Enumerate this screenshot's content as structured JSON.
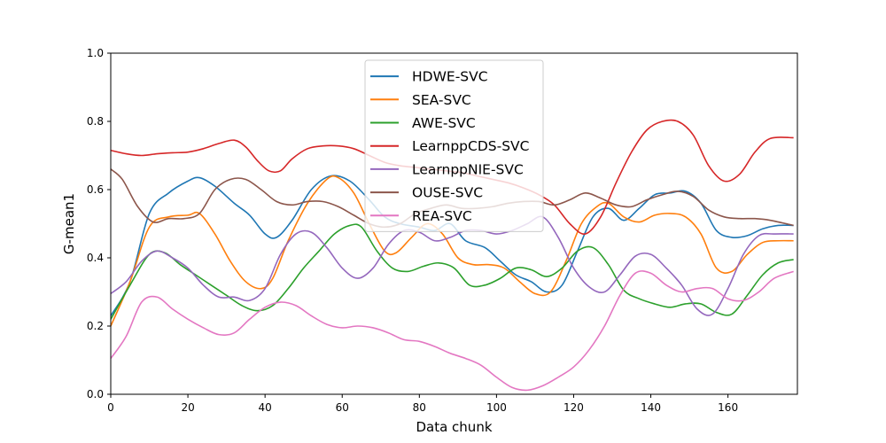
{
  "chart_data": {
    "type": "line",
    "xlabel": "Data chunk",
    "ylabel": "G-mean1",
    "xlim": [
      0,
      178
    ],
    "ylim": [
      0,
      1.0
    ],
    "xticks": [
      0,
      20,
      40,
      60,
      80,
      100,
      120,
      140,
      160
    ],
    "yticks": [
      0.0,
      0.2,
      0.4,
      0.6,
      0.8,
      1.0
    ],
    "xtick_labels": [
      "0",
      "20",
      "40",
      "60",
      "80",
      "100",
      "120",
      "140",
      "160"
    ],
    "ytick_labels": [
      "0.0",
      "0.2",
      "0.4",
      "0.6",
      "0.8",
      "1.0"
    ],
    "grid": false,
    "legend_position": "top-center",
    "series": [
      {
        "name": "HDWE-SVC",
        "color": "#1f77b4",
        "points": [
          [
            0,
            0.23
          ],
          [
            5,
            0.33
          ],
          [
            10,
            0.53
          ],
          [
            15,
            0.59
          ],
          [
            20,
            0.625
          ],
          [
            23,
            0.635
          ],
          [
            27,
            0.61
          ],
          [
            32,
            0.56
          ],
          [
            36,
            0.525
          ],
          [
            40,
            0.47
          ],
          [
            43,
            0.46
          ],
          [
            47,
            0.51
          ],
          [
            52,
            0.6
          ],
          [
            57,
            0.64
          ],
          [
            62,
            0.625
          ],
          [
            67,
            0.57
          ],
          [
            71,
            0.52
          ],
          [
            75,
            0.5
          ],
          [
            80,
            0.49
          ],
          [
            84,
            0.48
          ],
          [
            88,
            0.5
          ],
          [
            92,
            0.45
          ],
          [
            97,
            0.43
          ],
          [
            101,
            0.39
          ],
          [
            105,
            0.35
          ],
          [
            109,
            0.33
          ],
          [
            113,
            0.3
          ],
          [
            117,
            0.32
          ],
          [
            121,
            0.42
          ],
          [
            125,
            0.52
          ],
          [
            129,
            0.545
          ],
          [
            133,
            0.51
          ],
          [
            137,
            0.545
          ],
          [
            141,
            0.585
          ],
          [
            145,
            0.59
          ],
          [
            149,
            0.595
          ],
          [
            153,
            0.56
          ],
          [
            157,
            0.48
          ],
          [
            161,
            0.46
          ],
          [
            165,
            0.465
          ],
          [
            169,
            0.485
          ],
          [
            173,
            0.495
          ],
          [
            177,
            0.495
          ]
        ]
      },
      {
        "name": "SEA-SVC",
        "color": "#ff7f0e",
        "points": [
          [
            0,
            0.2
          ],
          [
            5,
            0.33
          ],
          [
            10,
            0.49
          ],
          [
            15,
            0.52
          ],
          [
            20,
            0.525
          ],
          [
            23,
            0.53
          ],
          [
            27,
            0.47
          ],
          [
            31,
            0.39
          ],
          [
            35,
            0.33
          ],
          [
            39,
            0.31
          ],
          [
            42,
            0.34
          ],
          [
            46,
            0.45
          ],
          [
            51,
            0.56
          ],
          [
            56,
            0.63
          ],
          [
            59,
            0.635
          ],
          [
            63,
            0.59
          ],
          [
            67,
            0.5
          ],
          [
            71,
            0.42
          ],
          [
            74,
            0.415
          ],
          [
            78,
            0.46
          ],
          [
            82,
            0.5
          ],
          [
            86,
            0.47
          ],
          [
            90,
            0.4
          ],
          [
            94,
            0.38
          ],
          [
            98,
            0.38
          ],
          [
            102,
            0.37
          ],
          [
            106,
            0.33
          ],
          [
            110,
            0.295
          ],
          [
            114,
            0.3
          ],
          [
            118,
            0.39
          ],
          [
            122,
            0.5
          ],
          [
            126,
            0.55
          ],
          [
            129,
            0.56
          ],
          [
            133,
            0.52
          ],
          [
            137,
            0.505
          ],
          [
            141,
            0.525
          ],
          [
            145,
            0.53
          ],
          [
            149,
            0.52
          ],
          [
            153,
            0.47
          ],
          [
            157,
            0.37
          ],
          [
            161,
            0.36
          ],
          [
            165,
            0.41
          ],
          [
            169,
            0.445
          ],
          [
            173,
            0.45
          ],
          [
            177,
            0.45
          ]
        ]
      },
      {
        "name": "AWE-SVC",
        "color": "#2ca02c",
        "points": [
          [
            0,
            0.22
          ],
          [
            5,
            0.32
          ],
          [
            10,
            0.41
          ],
          [
            14,
            0.415
          ],
          [
            18,
            0.38
          ],
          [
            22,
            0.35
          ],
          [
            26,
            0.32
          ],
          [
            30,
            0.29
          ],
          [
            34,
            0.26
          ],
          [
            38,
            0.245
          ],
          [
            42,
            0.26
          ],
          [
            46,
            0.31
          ],
          [
            50,
            0.37
          ],
          [
            54,
            0.42
          ],
          [
            58,
            0.47
          ],
          [
            62,
            0.495
          ],
          [
            65,
            0.49
          ],
          [
            69,
            0.42
          ],
          [
            73,
            0.37
          ],
          [
            77,
            0.36
          ],
          [
            81,
            0.375
          ],
          [
            85,
            0.385
          ],
          [
            89,
            0.37
          ],
          [
            93,
            0.32
          ],
          [
            97,
            0.32
          ],
          [
            101,
            0.34
          ],
          [
            105,
            0.37
          ],
          [
            109,
            0.365
          ],
          [
            113,
            0.345
          ],
          [
            117,
            0.37
          ],
          [
            121,
            0.42
          ],
          [
            125,
            0.43
          ],
          [
            129,
            0.38
          ],
          [
            133,
            0.305
          ],
          [
            137,
            0.28
          ],
          [
            141,
            0.265
          ],
          [
            145,
            0.255
          ],
          [
            149,
            0.265
          ],
          [
            153,
            0.265
          ],
          [
            157,
            0.24
          ],
          [
            161,
            0.235
          ],
          [
            165,
            0.29
          ],
          [
            169,
            0.35
          ],
          [
            173,
            0.385
          ],
          [
            177,
            0.395
          ]
        ]
      },
      {
        "name": "LearnppCDS-SVC",
        "color": "#d62728",
        "points": [
          [
            0,
            0.715
          ],
          [
            4,
            0.705
          ],
          [
            8,
            0.7
          ],
          [
            12,
            0.705
          ],
          [
            16,
            0.708
          ],
          [
            20,
            0.71
          ],
          [
            24,
            0.72
          ],
          [
            28,
            0.735
          ],
          [
            32,
            0.745
          ],
          [
            35,
            0.725
          ],
          [
            38,
            0.685
          ],
          [
            41,
            0.655
          ],
          [
            44,
            0.655
          ],
          [
            47,
            0.69
          ],
          [
            51,
            0.72
          ],
          [
            55,
            0.728
          ],
          [
            59,
            0.728
          ],
          [
            63,
            0.72
          ],
          [
            67,
            0.7
          ],
          [
            71,
            0.68
          ],
          [
            75,
            0.67
          ],
          [
            79,
            0.665
          ],
          [
            83,
            0.66
          ],
          [
            87,
            0.655
          ],
          [
            91,
            0.65
          ],
          [
            95,
            0.64
          ],
          [
            99,
            0.63
          ],
          [
            103,
            0.62
          ],
          [
            107,
            0.605
          ],
          [
            111,
            0.585
          ],
          [
            115,
            0.555
          ],
          [
            119,
            0.5
          ],
          [
            123,
            0.47
          ],
          [
            127,
            0.52
          ],
          [
            131,
            0.62
          ],
          [
            135,
            0.71
          ],
          [
            139,
            0.775
          ],
          [
            143,
            0.8
          ],
          [
            147,
            0.8
          ],
          [
            151,
            0.76
          ],
          [
            155,
            0.67
          ],
          [
            159,
            0.625
          ],
          [
            163,
            0.645
          ],
          [
            167,
            0.71
          ],
          [
            171,
            0.75
          ],
          [
            177,
            0.752
          ]
        ]
      },
      {
        "name": "LearnppNIE-SVC",
        "color": "#9467bd",
        "points": [
          [
            0,
            0.295
          ],
          [
            4,
            0.33
          ],
          [
            8,
            0.39
          ],
          [
            12,
            0.42
          ],
          [
            16,
            0.4
          ],
          [
            20,
            0.37
          ],
          [
            24,
            0.32
          ],
          [
            28,
            0.285
          ],
          [
            32,
            0.285
          ],
          [
            36,
            0.275
          ],
          [
            40,
            0.31
          ],
          [
            44,
            0.41
          ],
          [
            48,
            0.47
          ],
          [
            52,
            0.475
          ],
          [
            56,
            0.43
          ],
          [
            60,
            0.37
          ],
          [
            64,
            0.34
          ],
          [
            68,
            0.37
          ],
          [
            72,
            0.44
          ],
          [
            76,
            0.48
          ],
          [
            80,
            0.475
          ],
          [
            84,
            0.45
          ],
          [
            88,
            0.46
          ],
          [
            92,
            0.48
          ],
          [
            96,
            0.48
          ],
          [
            100,
            0.47
          ],
          [
            104,
            0.48
          ],
          [
            108,
            0.5
          ],
          [
            112,
            0.52
          ],
          [
            116,
            0.46
          ],
          [
            120,
            0.37
          ],
          [
            124,
            0.315
          ],
          [
            128,
            0.3
          ],
          [
            132,
            0.35
          ],
          [
            136,
            0.405
          ],
          [
            140,
            0.41
          ],
          [
            144,
            0.37
          ],
          [
            148,
            0.32
          ],
          [
            152,
            0.25
          ],
          [
            156,
            0.235
          ],
          [
            160,
            0.31
          ],
          [
            164,
            0.41
          ],
          [
            168,
            0.465
          ],
          [
            172,
            0.47
          ],
          [
            177,
            0.47
          ]
        ]
      },
      {
        "name": "OUSE-SVC",
        "color": "#8c564b",
        "points": [
          [
            0,
            0.66
          ],
          [
            3,
            0.63
          ],
          [
            7,
            0.55
          ],
          [
            11,
            0.505
          ],
          [
            15,
            0.515
          ],
          [
            19,
            0.515
          ],
          [
            23,
            0.53
          ],
          [
            27,
            0.6
          ],
          [
            31,
            0.63
          ],
          [
            35,
            0.63
          ],
          [
            39,
            0.6
          ],
          [
            43,
            0.565
          ],
          [
            47,
            0.555
          ],
          [
            51,
            0.565
          ],
          [
            55,
            0.565
          ],
          [
            59,
            0.55
          ],
          [
            63,
            0.525
          ],
          [
            67,
            0.5
          ],
          [
            71,
            0.49
          ],
          [
            75,
            0.5
          ],
          [
            79,
            0.53
          ],
          [
            83,
            0.545
          ],
          [
            87,
            0.555
          ],
          [
            91,
            0.545
          ],
          [
            95,
            0.545
          ],
          [
            99,
            0.55
          ],
          [
            103,
            0.56
          ],
          [
            107,
            0.565
          ],
          [
            111,
            0.565
          ],
          [
            115,
            0.555
          ],
          [
            119,
            0.57
          ],
          [
            123,
            0.59
          ],
          [
            127,
            0.575
          ],
          [
            131,
            0.555
          ],
          [
            135,
            0.55
          ],
          [
            139,
            0.57
          ],
          [
            143,
            0.585
          ],
          [
            147,
            0.595
          ],
          [
            151,
            0.58
          ],
          [
            155,
            0.54
          ],
          [
            159,
            0.52
          ],
          [
            163,
            0.515
          ],
          [
            167,
            0.515
          ],
          [
            171,
            0.51
          ],
          [
            177,
            0.495
          ]
        ]
      },
      {
        "name": "REA-SVC",
        "color": "#e377c2",
        "points": [
          [
            0,
            0.105
          ],
          [
            4,
            0.17
          ],
          [
            8,
            0.27
          ],
          [
            12,
            0.285
          ],
          [
            16,
            0.25
          ],
          [
            20,
            0.22
          ],
          [
            24,
            0.195
          ],
          [
            28,
            0.175
          ],
          [
            32,
            0.18
          ],
          [
            36,
            0.22
          ],
          [
            40,
            0.255
          ],
          [
            44,
            0.27
          ],
          [
            48,
            0.26
          ],
          [
            52,
            0.23
          ],
          [
            56,
            0.205
          ],
          [
            60,
            0.195
          ],
          [
            64,
            0.2
          ],
          [
            68,
            0.195
          ],
          [
            72,
            0.18
          ],
          [
            76,
            0.16
          ],
          [
            80,
            0.155
          ],
          [
            84,
            0.14
          ],
          [
            88,
            0.12
          ],
          [
            92,
            0.105
          ],
          [
            96,
            0.085
          ],
          [
            100,
            0.05
          ],
          [
            104,
            0.02
          ],
          [
            108,
            0.012
          ],
          [
            112,
            0.025
          ],
          [
            116,
            0.05
          ],
          [
            120,
            0.08
          ],
          [
            124,
            0.13
          ],
          [
            128,
            0.2
          ],
          [
            132,
            0.29
          ],
          [
            136,
            0.355
          ],
          [
            140,
            0.355
          ],
          [
            144,
            0.32
          ],
          [
            148,
            0.3
          ],
          [
            152,
            0.31
          ],
          [
            156,
            0.31
          ],
          [
            160,
            0.28
          ],
          [
            164,
            0.275
          ],
          [
            168,
            0.3
          ],
          [
            172,
            0.34
          ],
          [
            177,
            0.36
          ]
        ]
      }
    ]
  }
}
